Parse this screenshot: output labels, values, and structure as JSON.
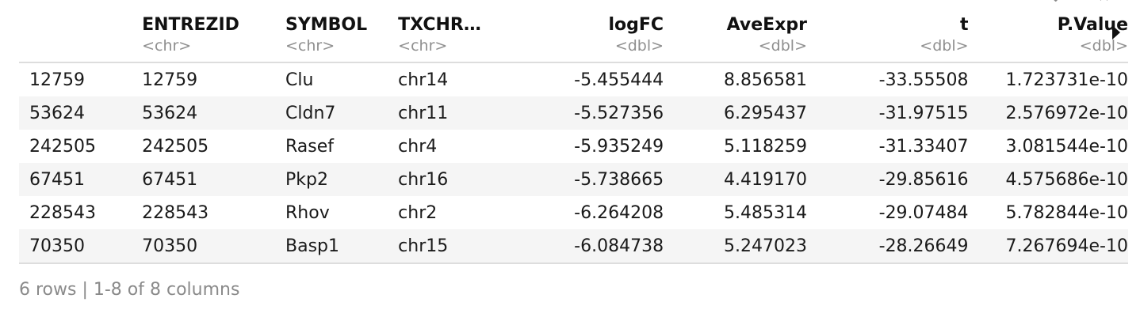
{
  "table": {
    "columns": [
      {
        "name": "",
        "type": ""
      },
      {
        "name": "ENTREZID",
        "type": "<chr>"
      },
      {
        "name": "SYMBOL",
        "type": "<chr>"
      },
      {
        "name": "TXCHR…",
        "type": "<chr>"
      },
      {
        "name": "logFC",
        "type": "<dbl>"
      },
      {
        "name": "AveExpr",
        "type": "<dbl>"
      },
      {
        "name": "t",
        "type": "<dbl>"
      },
      {
        "name": "P.Value",
        "type": "<dbl>"
      }
    ],
    "rows": [
      [
        "12759",
        "12759",
        "Clu",
        "chr14",
        "-5.455444",
        "8.856581",
        "-33.55508",
        "1.723731e-10"
      ],
      [
        "53624",
        "53624",
        "Cldn7",
        "chr11",
        "-5.527356",
        "6.295437",
        "-31.97515",
        "2.576972e-10"
      ],
      [
        "242505",
        "242505",
        "Rasef",
        "chr4",
        "-5.935249",
        "5.118259",
        "-31.33407",
        "3.081544e-10"
      ],
      [
        "67451",
        "67451",
        "Pkp2",
        "chr16",
        "-5.738665",
        "4.419170",
        "-29.85616",
        "4.575686e-10"
      ],
      [
        "228543",
        "228543",
        "Rhov",
        "chr2",
        "-6.264208",
        "5.485314",
        "-29.07484",
        "5.782844e-10"
      ],
      [
        "70350",
        "70350",
        "Basp1",
        "chr15",
        "-6.084738",
        "5.247023",
        "-28.26649",
        "7.267694e-10"
      ]
    ]
  },
  "footer": {
    "summary": "6 rows | 1-8 of 8 columns"
  },
  "icons": {
    "next_columns": "triangle-right-icon"
  }
}
